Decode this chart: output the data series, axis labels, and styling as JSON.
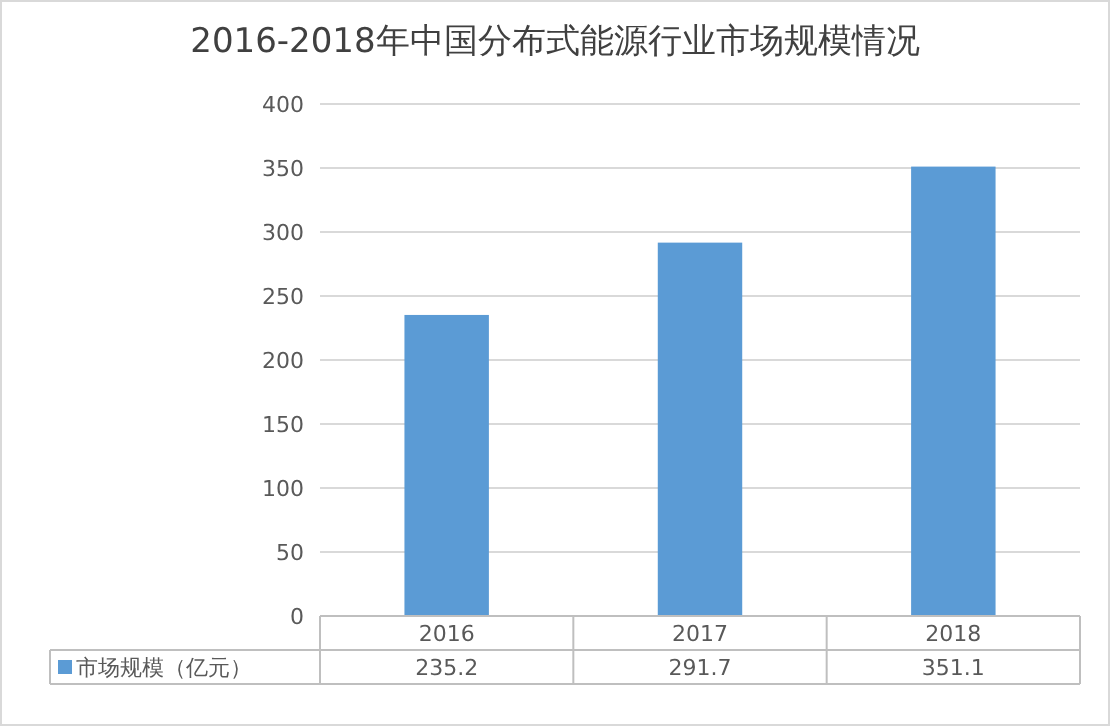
{
  "chart_data": {
    "type": "bar",
    "title": "2016-2018年中国分布式能源行业市场规模情况",
    "categories": [
      "2016",
      "2017",
      "2018"
    ],
    "series": [
      {
        "name": "市场规模（亿元）",
        "color": "#5b9bd5",
        "values": [
          235.2,
          291.7,
          351.1
        ]
      }
    ],
    "ylim": [
      0,
      400
    ],
    "yticks": [
      0,
      50,
      100,
      150,
      200,
      250,
      300,
      350,
      400
    ],
    "grid": "y",
    "legend": "bottom",
    "data_labels": true
  }
}
